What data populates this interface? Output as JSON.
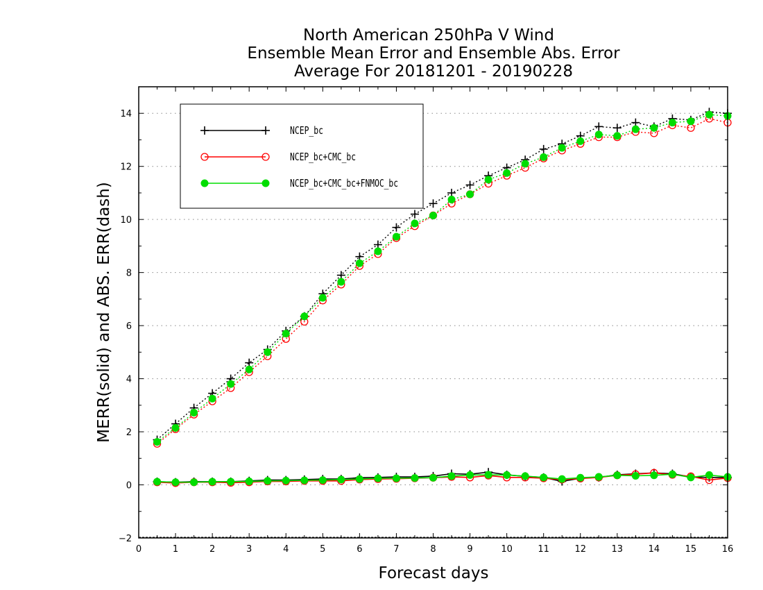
{
  "chart_data": {
    "type": "line",
    "title": [
      "North American 250hPa V Wind",
      "Ensemble Mean Error and Ensemble Abs. Error",
      "Average For 20181201 - 20190228"
    ],
    "xlabel": "Forecast days",
    "ylabel": "MERR(solid) and ABS. ERR(dash)",
    "xlim": [
      0,
      16
    ],
    "ylim": [
      -2,
      15
    ],
    "xticks": [
      0,
      1,
      2,
      3,
      4,
      5,
      6,
      7,
      8,
      9,
      10,
      11,
      12,
      13,
      14,
      15,
      16
    ],
    "yticks": [
      -2,
      0,
      2,
      4,
      6,
      8,
      10,
      12,
      14
    ],
    "grid": "horizontal dotted",
    "legend_position": "top-left",
    "x": [
      0.5,
      1.0,
      1.5,
      2.0,
      2.5,
      3.0,
      3.5,
      4.0,
      4.5,
      5.0,
      5.5,
      6.0,
      6.5,
      7.0,
      7.5,
      8.0,
      8.5,
      9.0,
      9.5,
      10.0,
      10.5,
      11.0,
      11.5,
      12.0,
      12.5,
      13.0,
      13.5,
      14.0,
      14.5,
      15.0,
      15.5,
      16.0
    ],
    "series": [
      {
        "name": "NCEP_bc",
        "color": "#000000",
        "marker": "plus",
        "abs_err": [
          1.7,
          2.3,
          2.9,
          3.45,
          4.0,
          4.6,
          5.1,
          5.8,
          6.35,
          7.2,
          7.9,
          8.6,
          9.05,
          9.7,
          10.2,
          10.6,
          11.0,
          11.3,
          11.65,
          11.95,
          12.25,
          12.65,
          12.85,
          13.15,
          13.5,
          13.45,
          13.65,
          13.5,
          13.8,
          13.75,
          14.05,
          14.0
        ],
        "mean_err": [
          0.12,
          0.1,
          0.12,
          0.12,
          0.12,
          0.15,
          0.18,
          0.18,
          0.2,
          0.22,
          0.22,
          0.27,
          0.28,
          0.3,
          0.3,
          0.33,
          0.42,
          0.4,
          0.48,
          0.38,
          0.32,
          0.28,
          0.13,
          0.25,
          0.28,
          0.38,
          0.42,
          0.45,
          0.42,
          0.3,
          0.28,
          0.28
        ]
      },
      {
        "name": "NCEP_bc+CMC_bc",
        "color": "#ff0000",
        "marker": "open-circle",
        "abs_err": [
          1.55,
          2.1,
          2.65,
          3.15,
          3.65,
          4.25,
          4.85,
          5.5,
          6.15,
          6.95,
          7.55,
          8.25,
          8.7,
          9.3,
          9.75,
          10.15,
          10.6,
          10.95,
          11.35,
          11.65,
          11.95,
          12.3,
          12.6,
          12.85,
          13.1,
          13.1,
          13.3,
          13.25,
          13.55,
          13.45,
          13.8,
          13.65
        ],
        "mean_err": [
          0.1,
          0.07,
          0.1,
          0.1,
          0.08,
          0.1,
          0.13,
          0.13,
          0.15,
          0.15,
          0.15,
          0.2,
          0.22,
          0.23,
          0.25,
          0.27,
          0.3,
          0.28,
          0.35,
          0.28,
          0.28,
          0.25,
          0.2,
          0.24,
          0.28,
          0.36,
          0.4,
          0.45,
          0.38,
          0.32,
          0.18,
          0.26
        ]
      },
      {
        "name": "NCEP_bc+CMC_bc+FNMOC_bc",
        "color": "#00dd00",
        "marker": "filled-circle",
        "abs_err": [
          1.62,
          2.15,
          2.72,
          3.25,
          3.8,
          4.35,
          5.0,
          5.7,
          6.35,
          7.05,
          7.65,
          8.35,
          8.8,
          9.35,
          9.85,
          10.15,
          10.75,
          10.95,
          11.5,
          11.75,
          12.1,
          12.35,
          12.7,
          12.95,
          13.2,
          13.15,
          13.4,
          13.45,
          13.65,
          13.7,
          13.95,
          13.9
        ],
        "mean_err": [
          0.12,
          0.1,
          0.1,
          0.12,
          0.12,
          0.13,
          0.15,
          0.16,
          0.17,
          0.18,
          0.2,
          0.22,
          0.25,
          0.25,
          0.26,
          0.27,
          0.33,
          0.37,
          0.38,
          0.37,
          0.33,
          0.28,
          0.22,
          0.27,
          0.3,
          0.36,
          0.34,
          0.36,
          0.4,
          0.28,
          0.37,
          0.3
        ]
      }
    ]
  }
}
